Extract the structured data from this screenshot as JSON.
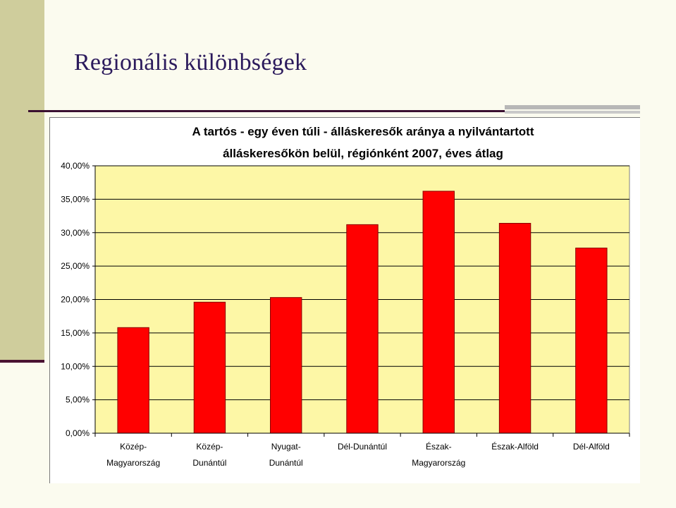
{
  "slide": {
    "title": "Regionális különbségek"
  },
  "chart_data": {
    "type": "bar",
    "title_line1": "A tartós - egy éven túli - álláskeresők aránya a nyilvántartott",
    "title_line2": "álláskeresőkön belül, régiónként  2007, éves átlag",
    "categories": [
      [
        "Közép-",
        "Magyarország"
      ],
      [
        "Közép-",
        "Dunántúl"
      ],
      [
        "Nyugat-",
        "Dunántúl"
      ],
      [
        "Dél-Dunántúl"
      ],
      [
        "Észak-",
        "Magyarország"
      ],
      [
        "Észak-Alföld"
      ],
      [
        "Dél-Alföld"
      ]
    ],
    "values": [
      15.8,
      19.6,
      20.3,
      31.2,
      36.2,
      31.4,
      27.7
    ],
    "ylim": [
      0,
      40
    ],
    "yticks": [
      "0,00%",
      "5,00%",
      "10,00%",
      "15,00%",
      "20,00%",
      "25,00%",
      "30,00%",
      "35,00%",
      "40,00%"
    ],
    "colors": {
      "bar": "#ff0000",
      "bar_outline": "#8a0000",
      "plot_background": "#fdf7a6",
      "gridline": "#000000"
    },
    "grid": true,
    "legend": "none"
  }
}
